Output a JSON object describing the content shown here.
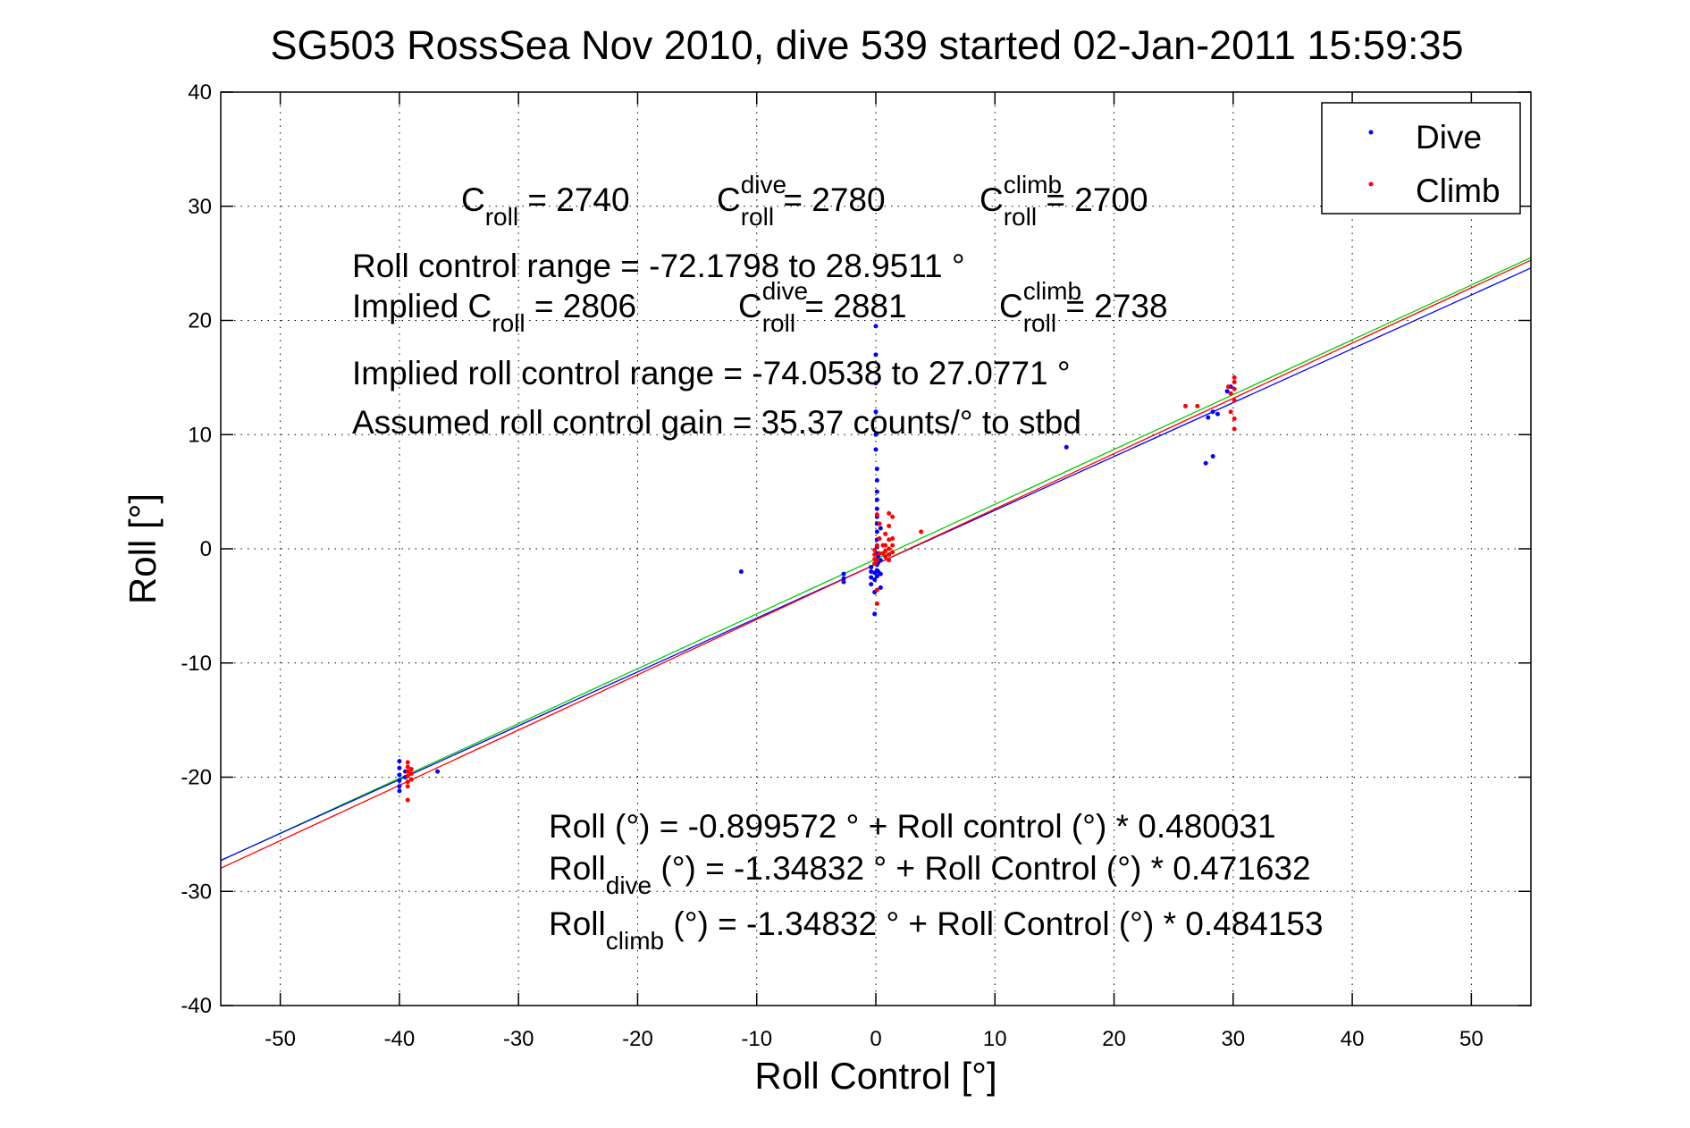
{
  "chart_data": {
    "type": "scatter",
    "title": "SG503 RossSea Nov 2010, dive 539 started 02-Jan-2011 15:59:35",
    "xlabel": "Roll Control [°]",
    "ylabel": "Roll [°]",
    "xlim": [
      -55,
      55
    ],
    "ylim": [
      -40,
      40
    ],
    "xticks": [
      -50,
      -40,
      -30,
      -20,
      -10,
      0,
      10,
      20,
      30,
      40,
      50
    ],
    "yticks": [
      -40,
      -30,
      -20,
      -10,
      0,
      10,
      20,
      30,
      40
    ],
    "grid": "dotted",
    "legend_position": "top-right",
    "colors": {
      "dive": "#0000ff",
      "climb": "#ff0000",
      "fit_all": "#00cc00",
      "fit_dive": "#0000ff",
      "fit_climb": "#ff0000"
    },
    "series": [
      {
        "name": "Dive",
        "marker": "dot",
        "color": "#0000ff",
        "points": [
          [
            -40.0,
            -18.6
          ],
          [
            -40.0,
            -19.2
          ],
          [
            -40.0,
            -19.8
          ],
          [
            -40.0,
            -20.3
          ],
          [
            -40.0,
            -20.8
          ],
          [
            -40.0,
            -21.2
          ],
          [
            -39.5,
            -19.5
          ],
          [
            -39.5,
            -20.0
          ],
          [
            -36.8,
            -19.5
          ],
          [
            -11.3,
            -2.0
          ],
          [
            -2.7,
            -2.2
          ],
          [
            -2.7,
            -2.6
          ],
          [
            -2.7,
            -2.9
          ],
          [
            -0.4,
            -1.6
          ],
          [
            -0.4,
            -2.0
          ],
          [
            -0.4,
            -2.5
          ],
          [
            -0.4,
            -3.1
          ],
          [
            -0.1,
            -1.3
          ],
          [
            -0.1,
            -2.1
          ],
          [
            -0.1,
            -2.7
          ],
          [
            -0.1,
            -3.8
          ],
          [
            -0.1,
            -5.7
          ],
          [
            0.0,
            19.5
          ],
          [
            0.0,
            17.0
          ],
          [
            0.0,
            14.5
          ],
          [
            0.0,
            12.0
          ],
          [
            0.0,
            10.0
          ],
          [
            0.0,
            8.7
          ],
          [
            0.1,
            7.0
          ],
          [
            0.1,
            6.0
          ],
          [
            0.1,
            5.0
          ],
          [
            0.1,
            4.3
          ],
          [
            0.1,
            3.5
          ],
          [
            0.1,
            2.8
          ],
          [
            0.1,
            2.2
          ],
          [
            0.1,
            1.5
          ],
          [
            0.1,
            0.8
          ],
          [
            0.1,
            0.2
          ],
          [
            0.1,
            -0.4
          ],
          [
            0.1,
            -0.9
          ],
          [
            0.1,
            -1.4
          ],
          [
            0.1,
            -1.9
          ],
          [
            0.1,
            -2.4
          ],
          [
            0.2,
            -0.6
          ],
          [
            0.2,
            -1.2
          ],
          [
            0.2,
            -2.0
          ],
          [
            0.4,
            1.8
          ],
          [
            0.4,
            -1.0
          ],
          [
            0.4,
            -2.2
          ],
          [
            0.4,
            -3.4
          ],
          [
            16.0,
            8.9
          ],
          [
            27.7,
            7.5
          ],
          [
            28.3,
            8.1
          ],
          [
            27.9,
            11.5
          ],
          [
            28.3,
            12.0
          ],
          [
            28.7,
            11.8
          ],
          [
            29.5,
            13.8
          ],
          [
            29.8,
            14.2
          ]
        ]
      },
      {
        "name": "Climb",
        "marker": "dot",
        "color": "#ff0000",
        "points": [
          [
            -39.3,
            -18.7
          ],
          [
            -39.3,
            -19.1
          ],
          [
            -39.3,
            -19.5
          ],
          [
            -39.3,
            -19.9
          ],
          [
            -39.3,
            -20.4
          ],
          [
            -39.3,
            -20.8
          ],
          [
            -39.3,
            -22.0
          ],
          [
            -39.0,
            -19.3
          ],
          [
            -39.0,
            -19.7
          ],
          [
            -39.0,
            -20.2
          ],
          [
            -0.1,
            -0.1
          ],
          [
            -0.1,
            -0.5
          ],
          [
            -0.1,
            -0.9
          ],
          [
            -0.1,
            -1.3
          ],
          [
            0.1,
            0.3
          ],
          [
            0.1,
            3.0
          ],
          [
            0.1,
            -1.0
          ],
          [
            0.1,
            -3.6
          ],
          [
            0.1,
            -4.8
          ],
          [
            0.3,
            2.2
          ],
          [
            0.3,
            0.9
          ],
          [
            0.3,
            -0.4
          ],
          [
            0.6,
            0.3
          ],
          [
            0.6,
            -0.4
          ],
          [
            0.8,
            1.3
          ],
          [
            0.8,
            0.3
          ],
          [
            0.8,
            -0.2
          ],
          [
            0.8,
            -0.7
          ],
          [
            1.1,
            3.1
          ],
          [
            1.1,
            2.0
          ],
          [
            1.1,
            0.8
          ],
          [
            1.1,
            0.0
          ],
          [
            1.1,
            -0.5
          ],
          [
            1.1,
            -1.0
          ],
          [
            1.4,
            2.8
          ],
          [
            1.4,
            0.9
          ],
          [
            1.4,
            0.3
          ],
          [
            1.4,
            -0.3
          ],
          [
            3.8,
            1.5
          ],
          [
            26.0,
            12.5
          ],
          [
            27.0,
            12.5
          ],
          [
            29.6,
            14.2
          ],
          [
            29.8,
            13.6
          ],
          [
            29.8,
            12.0
          ],
          [
            30.1,
            15.0
          ],
          [
            30.1,
            14.6
          ],
          [
            30.1,
            14.0
          ],
          [
            30.1,
            13.0
          ],
          [
            30.1,
            11.4
          ],
          [
            30.1,
            10.5
          ]
        ]
      }
    ],
    "fit_lines": [
      {
        "id": "all",
        "color": "#00cc00",
        "intercept": -0.899572,
        "slope": 0.480031
      },
      {
        "id": "dive",
        "color": "#0000ff",
        "intercept": -1.34832,
        "slope": 0.471632
      },
      {
        "id": "climb",
        "color": "#ff0000",
        "intercept": -1.34832,
        "slope": 0.484153
      }
    ],
    "annotations": [
      [
        {
          "t": "C"
        },
        {
          "t": "roll",
          "s": "sub"
        },
        {
          "t": " = 2740"
        }
      ],
      [
        {
          "t": "C"
        },
        {
          "t": "dive",
          "s": "sup"
        },
        {
          "t": "roll",
          "s": "sub"
        },
        {
          "t": " = 2780"
        }
      ],
      [
        {
          "t": "C"
        },
        {
          "t": "climb",
          "s": "sup"
        },
        {
          "t": "roll",
          "s": "sub"
        },
        {
          "t": " = 2700"
        }
      ],
      [
        {
          "t": "Roll control range = -72.1798 to 28.9511 °"
        }
      ],
      [
        {
          "t": "Implied C"
        },
        {
          "t": "roll",
          "s": "sub"
        },
        {
          "t": " = 2806"
        }
      ],
      [
        {
          "t": "C"
        },
        {
          "t": "dive",
          "s": "sup"
        },
        {
          "t": "roll",
          "s": "sub"
        },
        {
          "t": " = 2881"
        }
      ],
      [
        {
          "t": "C"
        },
        {
          "t": "climb",
          "s": "sup"
        },
        {
          "t": "roll",
          "s": "sub"
        },
        {
          "t": " = 2738"
        }
      ],
      [
        {
          "t": "Implied roll control range = -74.0538 to 27.0771 °"
        }
      ],
      [
        {
          "t": "Assumed roll control gain = 35.37 counts/° to stbd"
        }
      ],
      [
        {
          "t": "Roll (°) = -0.899572 ° + Roll control (°) * 0.480031"
        }
      ],
      [
        {
          "t": "Roll"
        },
        {
          "t": "dive",
          "s": "sub"
        },
        {
          "t": " (°) = -1.34832 ° + Roll Control (°) * 0.471632"
        }
      ],
      [
        {
          "t": "Roll"
        },
        {
          "t": "climb",
          "s": "sub"
        },
        {
          "t": " (°) = -1.34832 ° + Roll Control (°) * 0.484153"
        }
      ]
    ]
  }
}
